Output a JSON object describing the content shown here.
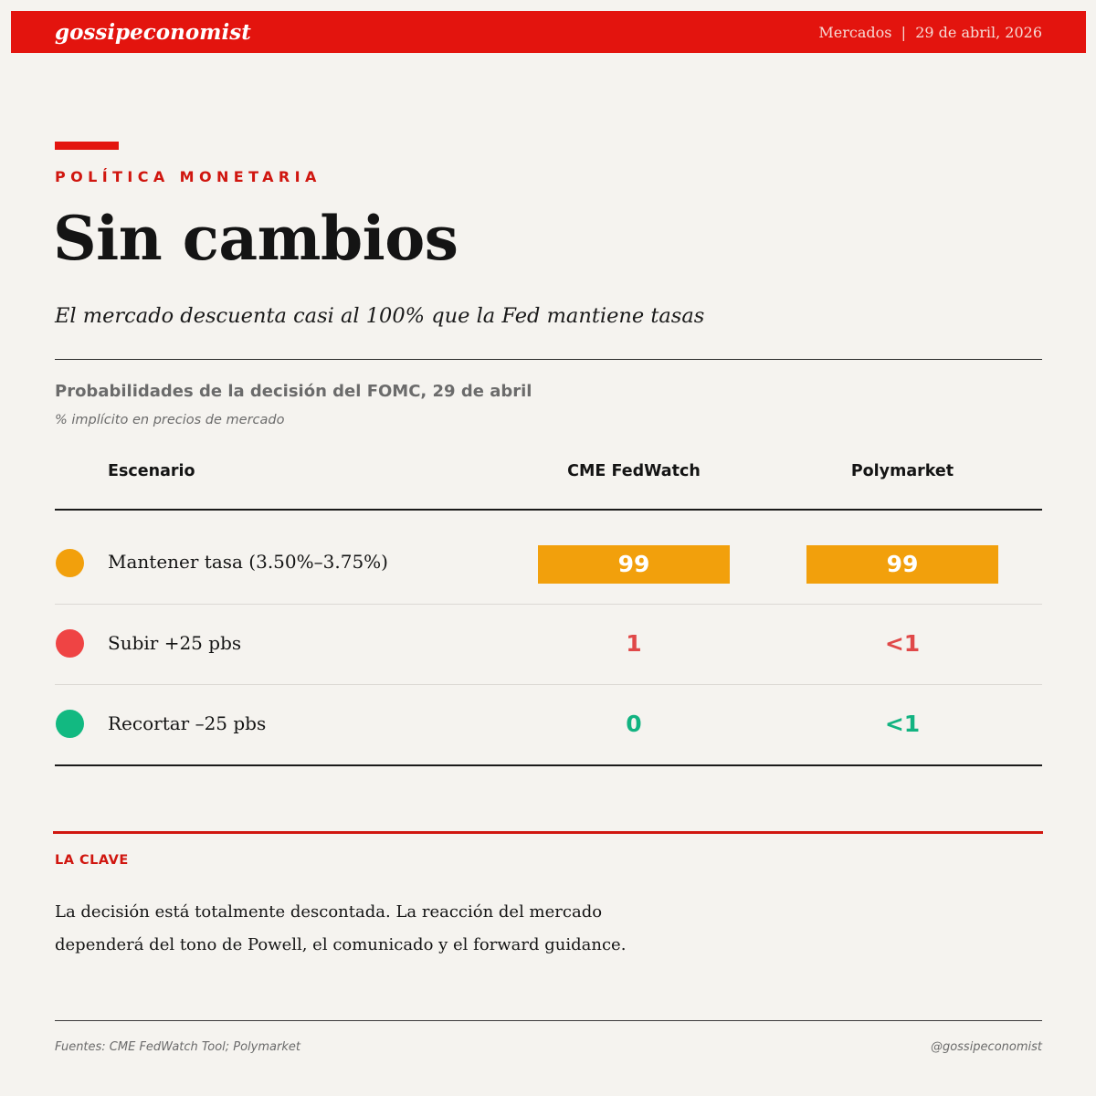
{
  "header": {
    "brand": "gossipeconomist",
    "section_date": "Mercados  |  29 de abril, 2026"
  },
  "article": {
    "kicker": "POLÍTICA MONETARIA",
    "title": "Sin cambios",
    "subtitle": "El mercado descuenta casi al 100% que la Fed mantiene tasas"
  },
  "table": {
    "title": "Probabilidades de la decisión del FOMC, 29 de abril",
    "subtitle": "% implícito en precios de mercado",
    "columns": [
      "Escenario",
      "CME FedWatch",
      "Polymarket"
    ],
    "rows": [
      {
        "scenario": "Mantener tasa (3.50%–3.75%)",
        "cme": "99",
        "poly": "99",
        "dot_color": "#f2a00c",
        "value_color": "#ffffff",
        "highlight_color": "#f2a00c"
      },
      {
        "scenario": "Subir +25 pbs",
        "cme": "1",
        "poly": "<1",
        "dot_color": "#ef4444",
        "value_color": "#e04848"
      },
      {
        "scenario": "Recortar –25 pbs",
        "cme": "0",
        "poly": "<1",
        "dot_color": "#12b981",
        "value_color": "#12b381"
      }
    ]
  },
  "key": {
    "label": "LA CLAVE",
    "text": "La decisión está totalmente descontada. La reacción del mercado dependerá del tono de Powell, el comunicado y el forward guidance."
  },
  "footer": {
    "sources": "Fuentes: CME FedWatch Tool; Polymarket",
    "handle": "@gossipeconomist"
  },
  "colors": {
    "brand_red": "#e3140e",
    "background": "#f5f3ef"
  }
}
